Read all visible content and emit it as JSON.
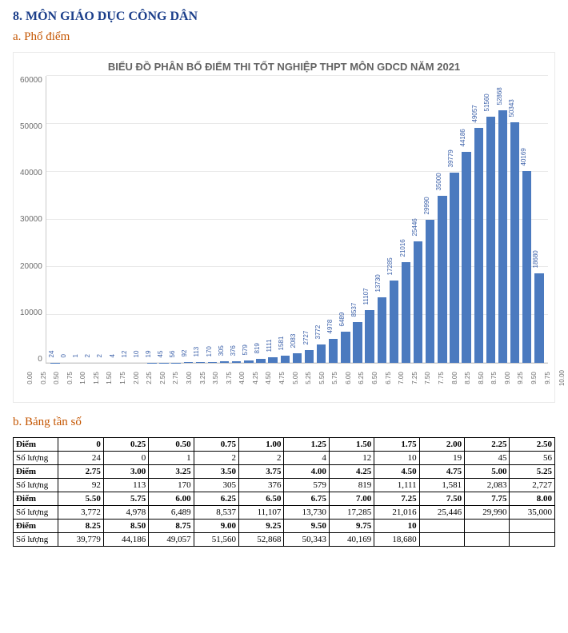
{
  "section_heading": "8. MÔN GIÁO DỤC CÔNG DÂN",
  "sub_heading_a": "a. Phổ điểm",
  "sub_heading_b": "b. Bảng tần số",
  "chart": {
    "type": "bar",
    "title": "BIỂU ĐỒ PHÂN BỐ ĐIỂM THI TỐT NGHIỆP THPT MÔN GDCD NĂM 2021",
    "title_fontsize": 13,
    "title_color": "#626262",
    "bar_color": "#4b7abf",
    "value_label_color": "#3a5fa8",
    "axis_label_color": "#6c6c6c",
    "grid_color": "#e9e9e9",
    "border_color": "#c9c9c9",
    "background_color": "#ffffff",
    "axis_fontsize": 10,
    "value_fontsize": 8,
    "xlabel_fontsize": 8,
    "ylim": [
      0,
      60000
    ],
    "ytick_step": 10000,
    "yticks": [
      "60000",
      "50000",
      "40000",
      "30000",
      "20000",
      "10000",
      "0"
    ],
    "categories": [
      "0.00",
      "0.25",
      "0.50",
      "0.75",
      "1.00",
      "1.25",
      "1.50",
      "1.75",
      "2.00",
      "2.25",
      "2.50",
      "2.75",
      "3.00",
      "3.25",
      "3.50",
      "3.75",
      "4.00",
      "4.25",
      "4.50",
      "4.75",
      "5.00",
      "5.25",
      "5.50",
      "5.75",
      "6.00",
      "6.25",
      "6.50",
      "6.75",
      "7.00",
      "7.25",
      "7.50",
      "7.75",
      "8.00",
      "8.25",
      "8.50",
      "8.75",
      "9.00",
      "9.25",
      "9.50",
      "9.75",
      "10.00"
    ],
    "values": [
      24,
      0,
      1,
      2,
      2,
      4,
      12,
      10,
      19,
      45,
      56,
      92,
      113,
      170,
      305,
      376,
      579,
      819,
      1111,
      1581,
      2083,
      2727,
      3772,
      4978,
      6489,
      8537,
      11107,
      13730,
      17285,
      21016,
      25446,
      29990,
      35000,
      39779,
      44186,
      49057,
      51560,
      52868,
      50343,
      40169,
      18680
    ]
  },
  "table": {
    "row_label_diem": "Điểm",
    "row_label_sl": "Số lượng",
    "rows": [
      {
        "type": "diem",
        "cells": [
          "0",
          "0.25",
          "0.50",
          "0.75",
          "1.00",
          "1.25",
          "1.50",
          "1.75",
          "2.00",
          "2.25",
          "2.50"
        ]
      },
      {
        "type": "sl",
        "cells": [
          "24",
          "0",
          "1",
          "2",
          "2",
          "4",
          "12",
          "10",
          "19",
          "45",
          "56"
        ]
      },
      {
        "type": "diem",
        "cells": [
          "2.75",
          "3.00",
          "3.25",
          "3.50",
          "3.75",
          "4.00",
          "4.25",
          "4.50",
          "4.75",
          "5.00",
          "5.25"
        ]
      },
      {
        "type": "sl",
        "cells": [
          "92",
          "113",
          "170",
          "305",
          "376",
          "579",
          "819",
          "1,111",
          "1,581",
          "2,083",
          "2,727"
        ]
      },
      {
        "type": "diem",
        "cells": [
          "5.50",
          "5.75",
          "6.00",
          "6.25",
          "6.50",
          "6.75",
          "7.00",
          "7.25",
          "7.50",
          "7.75",
          "8.00"
        ]
      },
      {
        "type": "sl",
        "cells": [
          "3,772",
          "4,978",
          "6,489",
          "8,537",
          "11,107",
          "13,730",
          "17,285",
          "21,016",
          "25,446",
          "29,990",
          "35,000"
        ]
      },
      {
        "type": "diem",
        "cells": [
          "8.25",
          "8.50",
          "8.75",
          "9.00",
          "9.25",
          "9.50",
          "9.75",
          "10",
          "",
          "",
          ""
        ]
      },
      {
        "type": "sl",
        "cells": [
          "39,779",
          "44,186",
          "49,057",
          "51,560",
          "52,868",
          "50,343",
          "40,169",
          "18,680",
          "",
          "",
          ""
        ]
      }
    ]
  }
}
